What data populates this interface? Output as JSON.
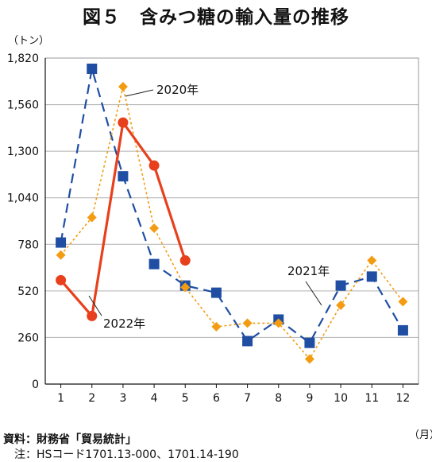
{
  "title": "図５　含みつ糖の輸入量の推移",
  "y_unit": "（トン）",
  "x_unit": "（月）",
  "source": "資料：財務省「貿易統計」",
  "note": "　注：HSコード1701.13-000、1701.14-190",
  "colors": {
    "2020": "#f39c12",
    "2021": "#1f4ea3",
    "2022": "#e8401c"
  },
  "chart_data": {
    "type": "line",
    "title": "図５　含みつ糖の輸入量の推移",
    "xlabel": "（月）",
    "ylabel": "（トン）",
    "categories": [
      "1",
      "2",
      "3",
      "4",
      "5",
      "6",
      "7",
      "8",
      "9",
      "10",
      "11",
      "12"
    ],
    "ylim": [
      0,
      1820
    ],
    "yticks": [
      0,
      260,
      520,
      780,
      1040,
      1300,
      1560,
      1820
    ],
    "ytick_labels": [
      "0",
      "260",
      "520",
      "780",
      "1,040",
      "1,300",
      "1,560",
      "1,820"
    ],
    "grid": true,
    "series": [
      {
        "name": "2020年",
        "marker": "diamond",
        "line": "short-dash",
        "values": [
          720,
          930,
          1660,
          870,
          540,
          320,
          340,
          340,
          140,
          440,
          690,
          460
        ]
      },
      {
        "name": "2021年",
        "marker": "square",
        "line": "long-dash",
        "values": [
          790,
          1760,
          1160,
          670,
          550,
          510,
          240,
          360,
          230,
          550,
          600,
          300
        ]
      },
      {
        "name": "2022年",
        "marker": "circle",
        "line": "solid",
        "values": [
          580,
          380,
          1460,
          1220,
          690,
          null,
          null,
          null,
          null,
          null,
          null,
          null
        ]
      }
    ]
  }
}
